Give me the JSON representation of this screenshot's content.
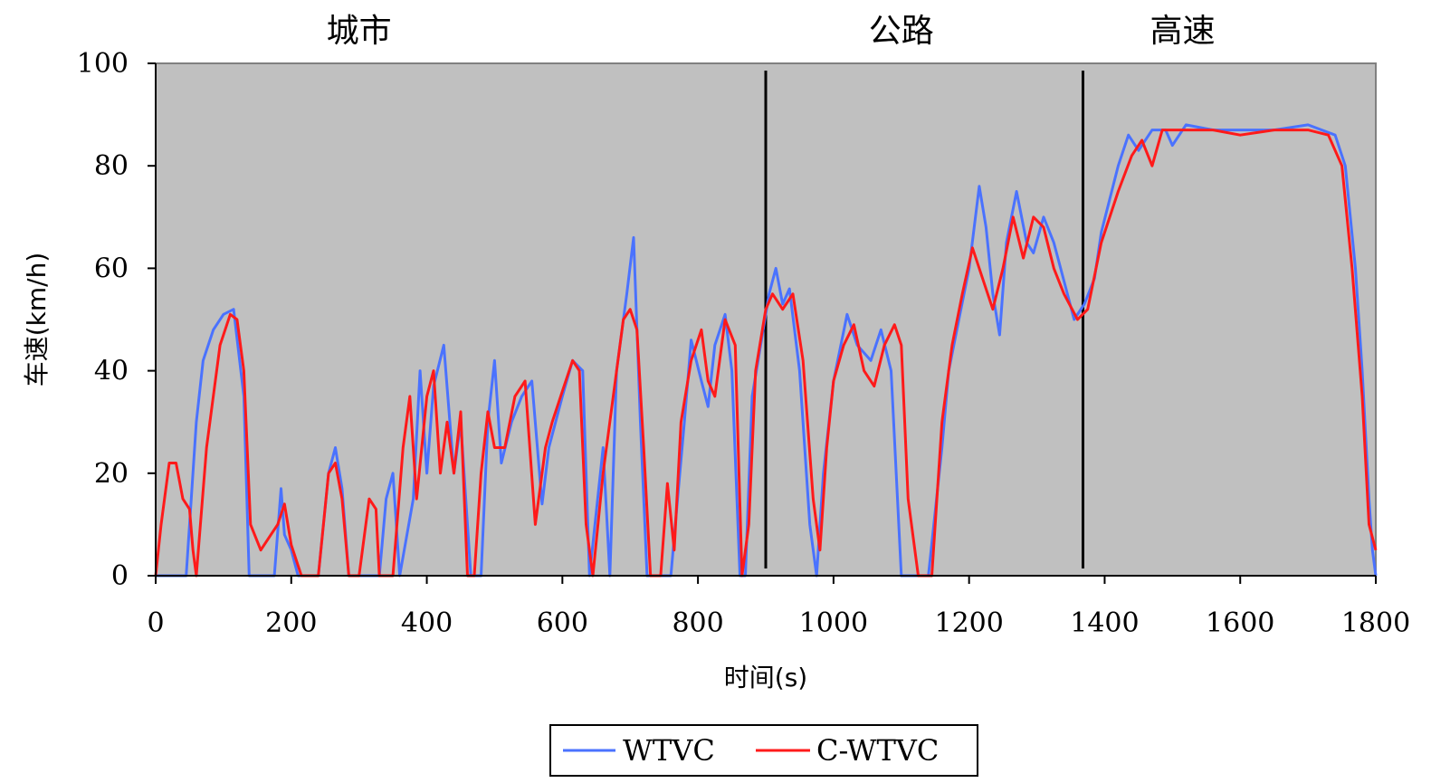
{
  "chart_data": {
    "type": "line",
    "xlabel": "时间(s)",
    "ylabel": "车速(km/h)",
    "xlim": [
      0,
      1800
    ],
    "ylim": [
      0,
      100
    ],
    "x_ticks": [
      "0",
      "200",
      "400",
      "600",
      "800",
      "1000",
      "1200",
      "1400",
      "1600",
      "1800"
    ],
    "y_ticks": [
      "0",
      "20",
      "40",
      "60",
      "80",
      "100"
    ],
    "x_tick_values": [
      0,
      200,
      400,
      600,
      800,
      1000,
      1200,
      1400,
      1600,
      1800
    ],
    "y_tick_values": [
      0,
      20,
      40,
      60,
      80,
      100
    ],
    "plot_background": "#c0c0c0",
    "grid": false,
    "segments": [
      {
        "label": "城市",
        "x_mid": 300
      },
      {
        "label": "公路",
        "x_mid": 1100
      },
      {
        "label": "高速",
        "x_mid": 1515
      }
    ],
    "dividers": [
      900,
      1368
    ],
    "legend_position": "bottom-center",
    "series": [
      {
        "name": "WTVC",
        "color": "#4a72ff",
        "points": [
          [
            0,
            0
          ],
          [
            45,
            0
          ],
          [
            60,
            30
          ],
          [
            70,
            42
          ],
          [
            85,
            48
          ],
          [
            100,
            51
          ],
          [
            115,
            52
          ],
          [
            130,
            35
          ],
          [
            138,
            0
          ],
          [
            175,
            0
          ],
          [
            185,
            17
          ],
          [
            190,
            8
          ],
          [
            200,
            5
          ],
          [
            210,
            0
          ],
          [
            240,
            0
          ],
          [
            255,
            20
          ],
          [
            265,
            25
          ],
          [
            275,
            17
          ],
          [
            285,
            0
          ],
          [
            330,
            0
          ],
          [
            340,
            15
          ],
          [
            350,
            20
          ],
          [
            360,
            0
          ],
          [
            380,
            15
          ],
          [
            390,
            40
          ],
          [
            400,
            20
          ],
          [
            410,
            37
          ],
          [
            425,
            45
          ],
          [
            440,
            20
          ],
          [
            450,
            30
          ],
          [
            465,
            0
          ],
          [
            480,
            0
          ],
          [
            490,
            30
          ],
          [
            500,
            42
          ],
          [
            510,
            22
          ],
          [
            525,
            30
          ],
          [
            540,
            35
          ],
          [
            555,
            38
          ],
          [
            570,
            14
          ],
          [
            580,
            25
          ],
          [
            600,
            35
          ],
          [
            615,
            42
          ],
          [
            630,
            40
          ],
          [
            640,
            0
          ],
          [
            660,
            25
          ],
          [
            670,
            0
          ],
          [
            680,
            40
          ],
          [
            695,
            55
          ],
          [
            705,
            66
          ],
          [
            715,
            30
          ],
          [
            725,
            0
          ],
          [
            760,
            0
          ],
          [
            770,
            15
          ],
          [
            780,
            30
          ],
          [
            790,
            46
          ],
          [
            805,
            38
          ],
          [
            815,
            33
          ],
          [
            825,
            45
          ],
          [
            840,
            51
          ],
          [
            850,
            40
          ],
          [
            862,
            0
          ],
          [
            870,
            0
          ],
          [
            880,
            35
          ],
          [
            890,
            43
          ],
          [
            905,
            55
          ],
          [
            915,
            60
          ],
          [
            925,
            53
          ],
          [
            935,
            56
          ],
          [
            950,
            40
          ],
          [
            965,
            10
          ],
          [
            975,
            0
          ],
          [
            985,
            20
          ],
          [
            1000,
            38
          ],
          [
            1020,
            51
          ],
          [
            1035,
            45
          ],
          [
            1055,
            42
          ],
          [
            1070,
            48
          ],
          [
            1085,
            40
          ],
          [
            1100,
            0
          ],
          [
            1140,
            0
          ],
          [
            1160,
            25
          ],
          [
            1170,
            40
          ],
          [
            1185,
            50
          ],
          [
            1200,
            60
          ],
          [
            1215,
            76
          ],
          [
            1225,
            68
          ],
          [
            1235,
            55
          ],
          [
            1245,
            47
          ],
          [
            1255,
            65
          ],
          [
            1270,
            75
          ],
          [
            1285,
            65
          ],
          [
            1295,
            63
          ],
          [
            1310,
            70
          ],
          [
            1325,
            65
          ],
          [
            1335,
            60
          ],
          [
            1345,
            55
          ],
          [
            1355,
            50
          ],
          [
            1370,
            53
          ],
          [
            1385,
            58
          ],
          [
            1395,
            67
          ],
          [
            1420,
            80
          ],
          [
            1435,
            86
          ],
          [
            1450,
            83
          ],
          [
            1470,
            87
          ],
          [
            1490,
            87
          ],
          [
            1500,
            84
          ],
          [
            1520,
            88
          ],
          [
            1560,
            87
          ],
          [
            1600,
            87
          ],
          [
            1650,
            87
          ],
          [
            1700,
            88
          ],
          [
            1740,
            86
          ],
          [
            1755,
            80
          ],
          [
            1770,
            60
          ],
          [
            1780,
            40
          ],
          [
            1790,
            15
          ],
          [
            1795,
            5
          ],
          [
            1800,
            0
          ]
        ]
      },
      {
        "name": "C-WTVC",
        "color": "#ff1a1a",
        "points": [
          [
            0,
            0
          ],
          [
            8,
            10
          ],
          [
            20,
            22
          ],
          [
            30,
            22
          ],
          [
            40,
            15
          ],
          [
            50,
            13
          ],
          [
            55,
            5
          ],
          [
            60,
            0
          ],
          [
            75,
            25
          ],
          [
            95,
            45
          ],
          [
            110,
            51
          ],
          [
            120,
            50
          ],
          [
            130,
            40
          ],
          [
            140,
            10
          ],
          [
            155,
            5
          ],
          [
            170,
            8
          ],
          [
            180,
            10
          ],
          [
            190,
            14
          ],
          [
            200,
            6
          ],
          [
            215,
            0
          ],
          [
            240,
            0
          ],
          [
            255,
            20
          ],
          [
            265,
            22
          ],
          [
            275,
            15
          ],
          [
            285,
            0
          ],
          [
            300,
            0
          ],
          [
            315,
            15
          ],
          [
            325,
            13
          ],
          [
            330,
            0
          ],
          [
            350,
            0
          ],
          [
            365,
            25
          ],
          [
            375,
            35
          ],
          [
            385,
            15
          ],
          [
            400,
            35
          ],
          [
            410,
            40
          ],
          [
            420,
            20
          ],
          [
            430,
            30
          ],
          [
            440,
            20
          ],
          [
            450,
            32
          ],
          [
            460,
            0
          ],
          [
            470,
            0
          ],
          [
            480,
            20
          ],
          [
            490,
            32
          ],
          [
            500,
            25
          ],
          [
            515,
            25
          ],
          [
            530,
            35
          ],
          [
            545,
            38
          ],
          [
            560,
            10
          ],
          [
            575,
            25
          ],
          [
            585,
            30
          ],
          [
            600,
            36
          ],
          [
            615,
            42
          ],
          [
            625,
            40
          ],
          [
            635,
            10
          ],
          [
            645,
            0
          ],
          [
            660,
            20
          ],
          [
            675,
            35
          ],
          [
            690,
            50
          ],
          [
            700,
            52
          ],
          [
            710,
            48
          ],
          [
            720,
            25
          ],
          [
            730,
            0
          ],
          [
            745,
            0
          ],
          [
            755,
            18
          ],
          [
            765,
            5
          ],
          [
            775,
            30
          ],
          [
            790,
            42
          ],
          [
            805,
            48
          ],
          [
            815,
            38
          ],
          [
            825,
            35
          ],
          [
            840,
            50
          ],
          [
            855,
            45
          ],
          [
            865,
            0
          ],
          [
            875,
            10
          ],
          [
            885,
            40
          ],
          [
            900,
            52
          ],
          [
            910,
            55
          ],
          [
            925,
            52
          ],
          [
            940,
            55
          ],
          [
            955,
            42
          ],
          [
            970,
            15
          ],
          [
            980,
            5
          ],
          [
            990,
            25
          ],
          [
            1000,
            38
          ],
          [
            1015,
            45
          ],
          [
            1030,
            49
          ],
          [
            1045,
            40
          ],
          [
            1060,
            37
          ],
          [
            1075,
            45
          ],
          [
            1090,
            49
          ],
          [
            1100,
            45
          ],
          [
            1110,
            15
          ],
          [
            1125,
            0
          ],
          [
            1145,
            0
          ],
          [
            1160,
            30
          ],
          [
            1175,
            45
          ],
          [
            1190,
            55
          ],
          [
            1205,
            64
          ],
          [
            1220,
            58
          ],
          [
            1235,
            52
          ],
          [
            1250,
            60
          ],
          [
            1265,
            70
          ],
          [
            1280,
            62
          ],
          [
            1295,
            70
          ],
          [
            1310,
            68
          ],
          [
            1325,
            60
          ],
          [
            1340,
            55
          ],
          [
            1360,
            50
          ],
          [
            1375,
            52
          ],
          [
            1395,
            65
          ],
          [
            1420,
            75
          ],
          [
            1440,
            82
          ],
          [
            1455,
            85
          ],
          [
            1470,
            80
          ],
          [
            1485,
            87
          ],
          [
            1520,
            87
          ],
          [
            1560,
            87
          ],
          [
            1600,
            86
          ],
          [
            1650,
            87
          ],
          [
            1700,
            87
          ],
          [
            1730,
            86
          ],
          [
            1750,
            80
          ],
          [
            1765,
            60
          ],
          [
            1780,
            35
          ],
          [
            1790,
            10
          ],
          [
            1800,
            5
          ]
        ]
      }
    ]
  }
}
